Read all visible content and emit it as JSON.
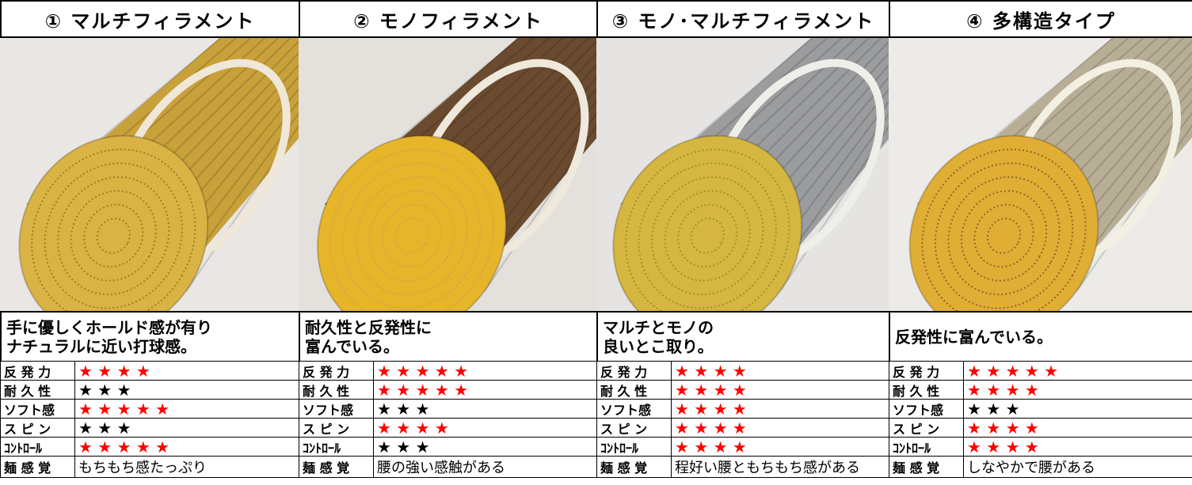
{
  "columns": [
    {
      "title": "① マルチフィラメント",
      "description": [
        "手に優しくホールド感が有り",
        "ナチュラルに近い打球感。"
      ],
      "ratings": [
        {
          "label": "反 発 力",
          "stars": "★ ★ ★ ★",
          "color": "#ff0000"
        },
        {
          "label": "耐 久 性",
          "stars": "★ ★ ★",
          "color": "#000000"
        },
        {
          "label": "ソフト感",
          "stars": "★ ★ ★ ★ ★",
          "color": "#ff0000"
        },
        {
          "label": "ス ピ ン",
          "stars": "★ ★ ★",
          "color": "#000000"
        },
        {
          "label": "ｺﾝﾄﾛｰﾙ",
          "stars": "★ ★ ★ ★ ★",
          "color": "#ff0000"
        }
      ],
      "feel": {
        "label": "麺 感 覚",
        "text": "もちもち感たっぷり"
      }
    },
    {
      "title": "② モノフィラメント",
      "description": [
        "耐久性と反発性に",
        "富んでいる。"
      ],
      "ratings": [
        {
          "label": "反 発 力",
          "stars": "★ ★ ★ ★ ★",
          "color": "#ff0000"
        },
        {
          "label": "耐 久 性",
          "stars": "★ ★ ★ ★ ★",
          "color": "#ff0000"
        },
        {
          "label": "ソフト感",
          "stars": "★ ★ ★",
          "color": "#000000"
        },
        {
          "label": "ス ピ ン",
          "stars": "★ ★ ★ ★",
          "color": "#ff0000"
        },
        {
          "label": "ｺﾝﾄﾛｰﾙ",
          "stars": "★ ★ ★",
          "color": "#000000"
        }
      ],
      "feel": {
        "label": "麺 感 覚",
        "text": "腰の強い感触がある"
      }
    },
    {
      "title": "③ モノ･マルチフィラメント",
      "description": [
        "マルチとモノの",
        "良いとこ取り。"
      ],
      "ratings": [
        {
          "label": "反 発 力",
          "stars": "★ ★ ★ ★",
          "color": "#ff0000"
        },
        {
          "label": "耐 久 性",
          "stars": "★ ★ ★ ★",
          "color": "#ff0000"
        },
        {
          "label": "ソフト感",
          "stars": "★ ★ ★ ★",
          "color": "#ff0000"
        },
        {
          "label": "ス ピ ン",
          "stars": "★ ★ ★ ★",
          "color": "#ff0000"
        },
        {
          "label": "ｺﾝﾄﾛｰﾙ",
          "stars": "★ ★ ★ ★",
          "color": "#ff0000"
        }
      ],
      "feel": {
        "label": "麺 感 覚",
        "text": "程好い腰ともちもち感がある"
      }
    },
    {
      "title": "④ 多構造タイプ",
      "description": [
        "反発性に富んでいる。"
      ],
      "ratings": [
        {
          "label": "反 発 力",
          "stars": "★ ★ ★ ★ ★",
          "color": "#ff0000"
        },
        {
          "label": "耐 久 性",
          "stars": "★ ★ ★ ★",
          "color": "#ff0000"
        },
        {
          "label": "ソフト感",
          "stars": "★ ★ ★",
          "color": "#000000"
        },
        {
          "label": "ス ピ ン",
          "stars": "★ ★ ★ ★",
          "color": "#ff0000"
        },
        {
          "label": "ｺﾝﾄﾛｰﾙ",
          "stars": "★ ★ ★ ★",
          "color": "#ff0000"
        }
      ],
      "feel": {
        "label": "麺 感 覚",
        "text": "しなやかで腰がある"
      }
    }
  ]
}
